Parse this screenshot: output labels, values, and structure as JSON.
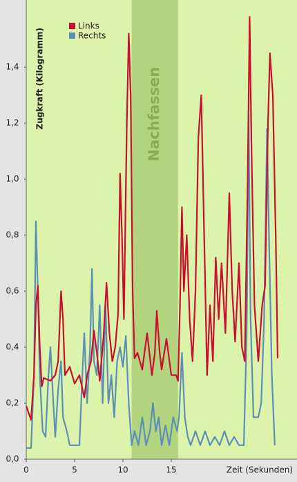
{
  "chart_data": {
    "type": "line",
    "y_label": "Zugkraft (Kilogramm)",
    "x_label": "Zeit (Sekunden)",
    "band": {
      "label": "Nachfassen",
      "from": 10.9,
      "to": 15.7,
      "color": "#b3d47f"
    },
    "xlim": [
      0,
      28
    ],
    "ylim": [
      0,
      1.64
    ],
    "xticks": [
      0,
      5,
      10,
      15
    ],
    "yticks": [
      {
        "value": 0,
        "label": "0,0"
      },
      {
        "value": 0.2,
        "label": "0,2"
      },
      {
        "value": 0.4,
        "label": "0,4"
      },
      {
        "value": 0.6,
        "label": "0,6"
      },
      {
        "value": 0.8,
        "label": "0,8"
      },
      {
        "value": 1.0,
        "label": "1,0"
      },
      {
        "value": 1.2,
        "label": "1,2"
      },
      {
        "value": 1.4,
        "label": "1,4"
      }
    ],
    "legend": "top-left",
    "series": [
      {
        "name": "Links",
        "color": "#c8102e",
        "x": [
          0,
          0.3,
          0.5,
          0.8,
          1.0,
          1.2,
          1.4,
          1.6,
          1.8,
          2.5,
          3.0,
          3.3,
          3.6,
          3.8,
          4.0,
          4.5,
          5.0,
          5.5,
          6.0,
          6.3,
          6.7,
          7.0,
          7.3,
          7.6,
          8.0,
          8.3,
          8.6,
          8.9,
          9.2,
          9.5,
          9.7,
          9.9,
          10.1,
          10.4,
          10.6,
          10.8,
          11.0,
          11.2,
          11.5,
          12.0,
          12.5,
          13.0,
          13.3,
          13.5,
          13.8,
          14.0,
          14.5,
          15.0,
          15.5,
          15.7,
          15.9,
          16.1,
          16.3,
          16.6,
          16.9,
          17.2,
          17.5,
          17.8,
          18.1,
          18.4,
          18.7,
          19.0,
          19.3,
          19.6,
          19.9,
          20.2,
          20.6,
          21.0,
          21.3,
          21.6,
          22.0,
          22.3,
          22.6,
          22.9,
          23.1,
          23.3,
          23.6,
          24.0,
          24.4,
          24.7,
          25.0,
          25.2,
          25.5,
          25.8,
          26.0
        ],
        "values": [
          0.19,
          0.16,
          0.14,
          0.3,
          0.55,
          0.62,
          0.4,
          0.26,
          0.29,
          0.28,
          0.3,
          0.35,
          0.6,
          0.5,
          0.3,
          0.33,
          0.27,
          0.3,
          0.22,
          0.3,
          0.35,
          0.46,
          0.38,
          0.28,
          0.44,
          0.63,
          0.45,
          0.35,
          0.4,
          0.52,
          1.02,
          0.8,
          0.5,
          1.2,
          1.52,
          1.3,
          0.6,
          0.36,
          0.38,
          0.32,
          0.45,
          0.3,
          0.38,
          0.53,
          0.38,
          0.32,
          0.43,
          0.3,
          0.3,
          0.28,
          0.55,
          0.9,
          0.6,
          0.8,
          0.5,
          0.35,
          0.6,
          1.15,
          1.3,
          0.8,
          0.3,
          0.55,
          0.35,
          0.72,
          0.5,
          0.7,
          0.45,
          0.95,
          0.6,
          0.42,
          0.7,
          0.4,
          0.35,
          1.0,
          1.58,
          1.1,
          0.55,
          0.35,
          0.55,
          0.62,
          1.2,
          1.45,
          1.3,
          0.8,
          0.36
        ]
      },
      {
        "name": "Rechts",
        "color": "#5b8fb5",
        "x": [
          0,
          0.5,
          0.8,
          1.0,
          1.2,
          1.4,
          1.7,
          2.0,
          2.3,
          2.5,
          2.8,
          3.0,
          3.3,
          3.6,
          3.8,
          4.2,
          4.5,
          5.0,
          5.5,
          5.8,
          6.0,
          6.3,
          6.6,
          6.8,
          7.0,
          7.3,
          7.6,
          7.9,
          8.2,
          8.5,
          8.8,
          9.1,
          9.4,
          9.7,
          10.0,
          10.3,
          10.6,
          10.9,
          11.2,
          11.6,
          12.0,
          12.4,
          12.8,
          13.1,
          13.4,
          13.7,
          14.0,
          14.4,
          14.8,
          15.2,
          15.6,
          15.8,
          16.1,
          16.4,
          16.7,
          17.0,
          17.5,
          18.0,
          18.5,
          19.0,
          19.5,
          20.0,
          20.5,
          21.0,
          21.5,
          22.0,
          22.5,
          22.8,
          23.0,
          23.2,
          23.5,
          24.0,
          24.3,
          24.6,
          24.9,
          25.1,
          25.4,
          25.7
        ],
        "values": [
          0.04,
          0.04,
          0.3,
          0.85,
          0.6,
          0.3,
          0.1,
          0.08,
          0.3,
          0.4,
          0.2,
          0.08,
          0.25,
          0.35,
          0.15,
          0.1,
          0.05,
          0.05,
          0.05,
          0.3,
          0.45,
          0.2,
          0.4,
          0.68,
          0.35,
          0.3,
          0.55,
          0.2,
          0.55,
          0.2,
          0.3,
          0.15,
          0.35,
          0.4,
          0.33,
          0.44,
          0.2,
          0.05,
          0.1,
          0.05,
          0.15,
          0.05,
          0.1,
          0.2,
          0.1,
          0.15,
          0.05,
          0.12,
          0.05,
          0.15,
          0.1,
          0.15,
          0.38,
          0.15,
          0.08,
          0.05,
          0.1,
          0.05,
          0.1,
          0.05,
          0.08,
          0.05,
          0.1,
          0.05,
          0.08,
          0.05,
          0.05,
          0.45,
          1.23,
          0.5,
          0.15,
          0.15,
          0.2,
          0.5,
          1.18,
          0.8,
          0.3,
          0.05
        ]
      }
    ]
  }
}
